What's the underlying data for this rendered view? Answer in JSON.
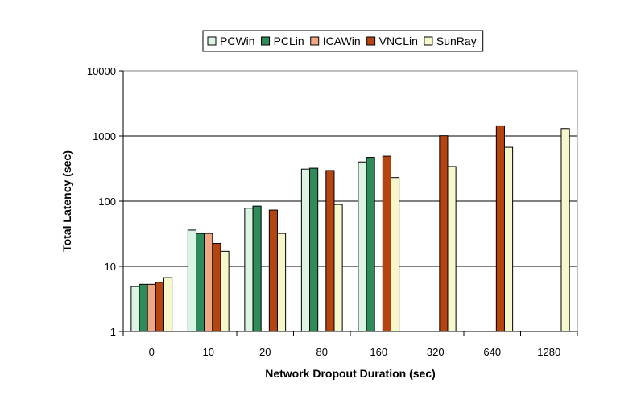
{
  "chart_data": {
    "type": "bar",
    "title": "",
    "xlabel": "Network Dropout Duration (sec)",
    "ylabel": "Total Latency (sec)",
    "yscale": "log",
    "ylim": [
      1,
      10000
    ],
    "yticks": [
      1,
      10,
      100,
      1000,
      10000
    ],
    "ytick_labels": [
      "1",
      "10",
      "100",
      "1000",
      "10000"
    ],
    "grid": true,
    "legend_position": "top-center",
    "categories": [
      "0",
      "10",
      "20",
      "80",
      "160",
      "320",
      "640",
      "1280"
    ],
    "series": [
      {
        "name": "PCWin",
        "color": "#dcf4e4",
        "values": [
          4.9,
          36,
          78,
          310,
          400,
          null,
          null,
          null
        ]
      },
      {
        "name": "PCLin",
        "color": "#2e8b5a",
        "values": [
          5.3,
          32,
          84,
          320,
          470,
          null,
          null,
          null
        ]
      },
      {
        "name": "ICAWin",
        "color": "#f0a882",
        "values": [
          5.3,
          32,
          null,
          null,
          null,
          null,
          null,
          null
        ]
      },
      {
        "name": "VNCLin",
        "color": "#b5440f",
        "values": [
          5.7,
          22.5,
          73,
          295,
          490,
          1010,
          1430,
          null
        ]
      },
      {
        "name": "SunRay",
        "color": "#f7f7cc",
        "values": [
          6.7,
          17,
          32,
          89,
          230,
          340,
          670,
          1300
        ]
      }
    ]
  }
}
